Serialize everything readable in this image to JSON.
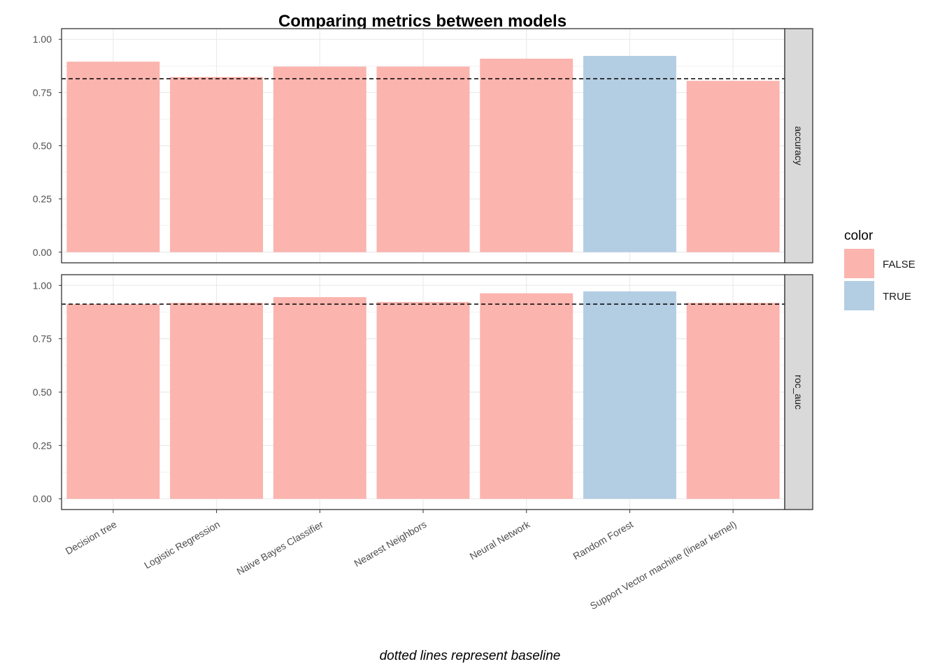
{
  "chart_data": {
    "type": "bar",
    "title": "Comparing metrics between models",
    "caption": "dotted lines represent baseline",
    "xlabel": "",
    "ylabel": "",
    "categories": [
      "Decision tree",
      "Logistic Regression",
      "Naive Bayes Classifier",
      "Nearest Neighbors",
      "Neural Network",
      "Random Forest",
      "Support Vector machine (linear kernel)"
    ],
    "facets": [
      {
        "name": "accuracy",
        "values": [
          0.895,
          0.823,
          0.872,
          0.872,
          0.909,
          0.922,
          0.805
        ],
        "highlight": [
          false,
          false,
          false,
          false,
          false,
          true,
          false
        ],
        "baseline": 0.815
      },
      {
        "name": "roc_auc",
        "values": [
          0.912,
          0.918,
          0.945,
          0.922,
          0.963,
          0.972,
          0.918
        ],
        "highlight": [
          false,
          false,
          false,
          false,
          false,
          true,
          false
        ],
        "baseline": 0.912
      }
    ],
    "ylim": [
      0,
      1
    ],
    "yticks": [
      "0.00",
      "0.25",
      "0.50",
      "0.75",
      "1.00"
    ],
    "grid": true,
    "legend": {
      "title": "color",
      "position": "right",
      "entries": [
        {
          "label": "FALSE",
          "color": "#FBB4AE"
        },
        {
          "label": "TRUE",
          "color": "#B3CDE3"
        }
      ]
    },
    "colors": {
      "false": "#FBB4AE",
      "true": "#B3CDE3",
      "baseline": "#000000",
      "strip": "#D9D9D9",
      "grid": "#EBEBEB"
    }
  }
}
